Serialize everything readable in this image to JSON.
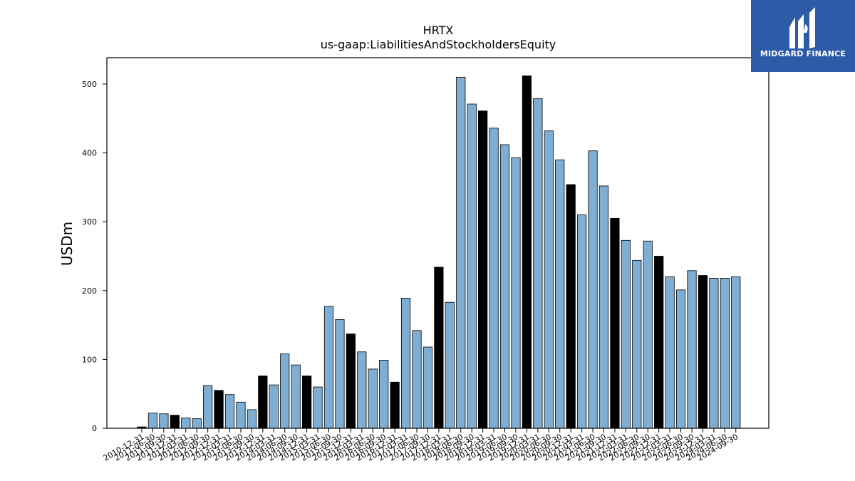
{
  "brand": {
    "name": "MIDGARD FINANCE",
    "bg_color": "#2d5ba8",
    "icon": "midgard-logo-icon"
  },
  "chart_data": {
    "type": "bar",
    "title": "HRTX",
    "subtitle": "us-gaap:LiabilitiesAndStockholdersEquity",
    "ylabel": "USDm",
    "xlabel": "",
    "ylim": [
      0,
      540
    ],
    "yticks": [
      0,
      100,
      200,
      300,
      400,
      500
    ],
    "grid": false,
    "colors": {
      "quarter": "#7eaed3",
      "year_end": "#000000",
      "edge": "#000000"
    },
    "categories": [
      "2010-12-31",
      "2011-06-30",
      "2011-09-30",
      "2011-12-31",
      "2012-03-31",
      "2012-06-30",
      "2012-09-30",
      "2012-12-31",
      "2013-03-31",
      "2013-06-30",
      "2013-09-30",
      "2013-12-31",
      "2014-03-31",
      "2014-06-30",
      "2014-09-30",
      "2014-12-31",
      "2015-03-31",
      "2015-06-30",
      "2015-09-30",
      "2015-12-31",
      "2016-03-31",
      "2016-06-30",
      "2016-09-30",
      "2016-12-31",
      "2017-03-31",
      "2017-06-30",
      "2017-09-30",
      "2017-12-31",
      "2018-03-31",
      "2018-06-30",
      "2018-09-30",
      "2018-12-31",
      "2019-03-31",
      "2019-06-30",
      "2019-09-30",
      "2019-12-31",
      "2020-03-31",
      "2020-06-30",
      "2020-09-30",
      "2020-12-31",
      "2021-03-31",
      "2021-06-30",
      "2021-09-30",
      "2021-12-31",
      "2022-03-31",
      "2022-06-30",
      "2022-09-30",
      "2022-12-31",
      "2023-03-31",
      "2023-06-30",
      "2023-09-30",
      "2023-12-31",
      "2024-03-31",
      "2024-06-30",
      "2024-09-30"
    ],
    "values": [
      2,
      22,
      21,
      19,
      15,
      14,
      62,
      55,
      49,
      38,
      27,
      76,
      63,
      108,
      92,
      76,
      60,
      177,
      158,
      137,
      111,
      86,
      99,
      67,
      189,
      142,
      118,
      234,
      183,
      510,
      471,
      461,
      436,
      412,
      393,
      512,
      479,
      432,
      390,
      354,
      310,
      403,
      352,
      305,
      273,
      244,
      272,
      250,
      220,
      201,
      229,
      222,
      218,
      218,
      220
    ]
  }
}
